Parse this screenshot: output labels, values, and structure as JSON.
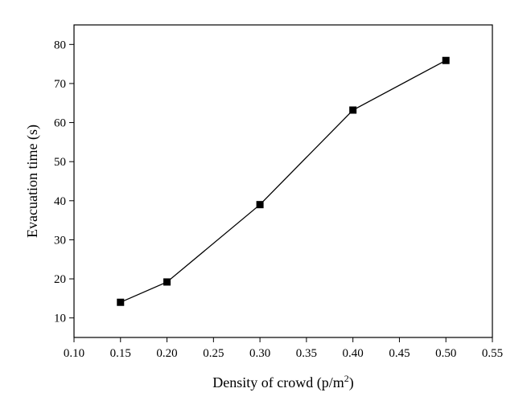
{
  "chart_data": {
    "type": "line",
    "title": "",
    "xlabel": "Density of crowd (p/m",
    "xlabel_superscript": "2",
    "xlabel_suffix": ")",
    "ylabel": "Evacuation time (s)",
    "xlim": [
      0.1,
      0.55
    ],
    "ylim": [
      5,
      85
    ],
    "x_ticks": [
      0.1,
      0.15,
      0.2,
      0.25,
      0.3,
      0.35,
      0.4,
      0.45,
      0.5,
      0.55
    ],
    "x_tick_labels": [
      "0.10",
      "0.15",
      "0.20",
      "0.25",
      "0.30",
      "0.35",
      "0.40",
      "0.45",
      "0.50",
      "0.55"
    ],
    "y_ticks": [
      10,
      20,
      30,
      40,
      50,
      60,
      70,
      80
    ],
    "y_tick_labels": [
      "10",
      "20",
      "30",
      "40",
      "50",
      "60",
      "70",
      "80"
    ],
    "grid": false,
    "series": [
      {
        "name": "Evacuation time",
        "marker": "square",
        "color": "#000000",
        "x": [
          0.15,
          0.2,
          0.3,
          0.4,
          0.5
        ],
        "y": [
          14,
          19.2,
          39,
          63.2,
          75.9
        ]
      }
    ]
  }
}
